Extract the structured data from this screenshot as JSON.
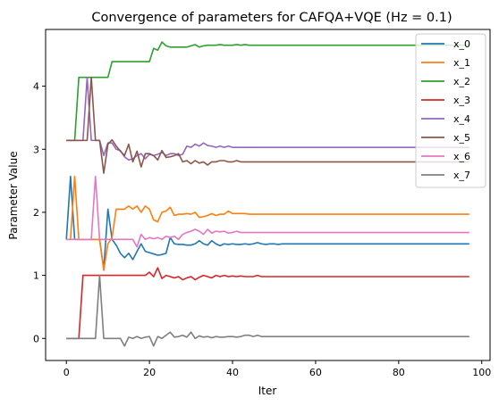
{
  "chart_data": {
    "type": "line",
    "title": "Convergence of parameters for CAFQA+VQE (Hz = 0.1)",
    "xlabel": "Iter",
    "ylabel": "Parameter Value",
    "xlim": [
      -5,
      102
    ],
    "ylim": [
      -0.35,
      4.9
    ],
    "xticks": [
      0,
      20,
      40,
      60,
      80,
      100
    ],
    "yticks": [
      0,
      1,
      2,
      3,
      4
    ],
    "legend_position": "top-right",
    "grid": false,
    "x": [
      0,
      1,
      2,
      3,
      4,
      5,
      6,
      7,
      8,
      9,
      10,
      11,
      12,
      13,
      14,
      15,
      16,
      17,
      18,
      19,
      20,
      21,
      22,
      23,
      24,
      25,
      26,
      27,
      28,
      29,
      30,
      31,
      32,
      33,
      34,
      35,
      36,
      37,
      38,
      39,
      40,
      41,
      42,
      43,
      44,
      45,
      46,
      47,
      48,
      49,
      50,
      51,
      52,
      53,
      54,
      55,
      56,
      57,
      58,
      59,
      60,
      61,
      62,
      63,
      64,
      65,
      66,
      67,
      68,
      69,
      70,
      71,
      72,
      73,
      74,
      75,
      76,
      77,
      78,
      79,
      80,
      81,
      82,
      83,
      84,
      85,
      86,
      87,
      88,
      89,
      90,
      91,
      92,
      93,
      94,
      95,
      96,
      97
    ],
    "series": [
      {
        "name": "x_0",
        "color": "#1f77b4",
        "values": [
          1.57,
          2.57,
          1.57,
          1.57,
          1.57,
          1.57,
          1.57,
          1.57,
          1.57,
          1.1,
          2.05,
          1.57,
          1.48,
          1.35,
          1.28,
          1.35,
          1.25,
          1.38,
          1.5,
          1.38,
          1.36,
          1.34,
          1.32,
          1.33,
          1.35,
          1.6,
          1.5,
          1.49,
          1.49,
          1.48,
          1.48,
          1.5,
          1.55,
          1.5,
          1.48,
          1.55,
          1.5,
          1.47,
          1.5,
          1.49,
          1.5,
          1.49,
          1.49,
          1.5,
          1.49,
          1.5,
          1.52,
          1.5,
          1.49,
          1.5,
          1.5,
          1.49,
          1.5,
          1.5,
          1.5,
          1.5,
          1.5,
          1.5,
          1.5,
          1.5,
          1.5,
          1.5,
          1.5,
          1.5,
          1.5,
          1.5,
          1.5,
          1.5,
          1.5,
          1.5,
          1.5,
          1.5,
          1.5,
          1.5,
          1.5,
          1.5,
          1.5,
          1.5,
          1.5,
          1.5,
          1.5,
          1.5,
          1.5,
          1.5,
          1.5,
          1.5,
          1.5,
          1.5,
          1.5,
          1.5,
          1.5,
          1.5,
          1.5,
          1.5,
          1.5,
          1.5,
          1.5,
          1.5
        ]
      },
      {
        "name": "x_1",
        "color": "#ff7f0e",
        "values": [
          1.57,
          1.57,
          2.57,
          1.57,
          1.57,
          1.57,
          1.57,
          1.57,
          1.57,
          1.08,
          1.5,
          1.6,
          2.05,
          2.05,
          2.05,
          2.1,
          2.05,
          2.1,
          2.0,
          2.1,
          2.05,
          1.88,
          1.85,
          2.0,
          2.02,
          2.08,
          1.95,
          1.97,
          1.97,
          1.98,
          1.97,
          2.0,
          1.92,
          1.93,
          1.95,
          1.98,
          1.95,
          1.97,
          1.97,
          2.02,
          1.98,
          1.98,
          1.98,
          1.98,
          1.97,
          1.97,
          1.97,
          1.97,
          1.97,
          1.97,
          1.97,
          1.97,
          1.97,
          1.97,
          1.97,
          1.97,
          1.97,
          1.97,
          1.97,
          1.97,
          1.97,
          1.97,
          1.97,
          1.97,
          1.97,
          1.97,
          1.97,
          1.97,
          1.97,
          1.97,
          1.97,
          1.97,
          1.97,
          1.97,
          1.97,
          1.97,
          1.97,
          1.97,
          1.97,
          1.97,
          1.97,
          1.97,
          1.97,
          1.97,
          1.97,
          1.97,
          1.97,
          1.97,
          1.97,
          1.97,
          1.97,
          1.97,
          1.97,
          1.97,
          1.97,
          1.97,
          1.97,
          1.97
        ]
      },
      {
        "name": "x_2",
        "color": "#2ca02c",
        "values": [
          3.14,
          3.14,
          3.14,
          4.14,
          4.14,
          4.14,
          4.14,
          4.14,
          4.14,
          4.14,
          4.14,
          4.39,
          4.39,
          4.39,
          4.39,
          4.39,
          4.39,
          4.39,
          4.39,
          4.39,
          4.39,
          4.6,
          4.57,
          4.7,
          4.64,
          4.62,
          4.62,
          4.62,
          4.62,
          4.62,
          4.64,
          4.66,
          4.62,
          4.64,
          4.65,
          4.65,
          4.65,
          4.66,
          4.65,
          4.65,
          4.65,
          4.66,
          4.65,
          4.66,
          4.65,
          4.65,
          4.65,
          4.65,
          4.65,
          4.65,
          4.65,
          4.65,
          4.65,
          4.65,
          4.65,
          4.65,
          4.65,
          4.65,
          4.65,
          4.65,
          4.65,
          4.65,
          4.65,
          4.65,
          4.65,
          4.65,
          4.65,
          4.65,
          4.65,
          4.65,
          4.65,
          4.65,
          4.65,
          4.65,
          4.65,
          4.65,
          4.65,
          4.65,
          4.65,
          4.65,
          4.65,
          4.65,
          4.65,
          4.65,
          4.65,
          4.65,
          4.65,
          4.65,
          4.65,
          4.65,
          4.65,
          4.65,
          4.65,
          4.65,
          4.65,
          4.65,
          4.65,
          4.65
        ]
      },
      {
        "name": "x_3",
        "color": "#d62728",
        "values": [
          0,
          0,
          0,
          0,
          1.0,
          1.0,
          1.0,
          1.0,
          1.0,
          1.0,
          1.0,
          1.0,
          1.0,
          1.0,
          1.0,
          1.0,
          1.0,
          1.0,
          1.0,
          1.0,
          1.05,
          0.98,
          1.12,
          0.95,
          1.0,
          0.98,
          0.96,
          0.98,
          0.93,
          0.96,
          0.98,
          0.93,
          0.97,
          1.0,
          0.98,
          0.96,
          1.0,
          0.98,
          1.0,
          0.98,
          0.99,
          0.98,
          0.99,
          0.98,
          0.98,
          0.98,
          1.0,
          0.98,
          0.98,
          0.98,
          0.98,
          0.98,
          0.98,
          0.98,
          0.98,
          0.98,
          0.98,
          0.98,
          0.98,
          0.98,
          0.98,
          0.98,
          0.98,
          0.98,
          0.98,
          0.98,
          0.98,
          0.98,
          0.98,
          0.98,
          0.98,
          0.98,
          0.98,
          0.98,
          0.98,
          0.98,
          0.98,
          0.98,
          0.98,
          0.98,
          0.98,
          0.98,
          0.98,
          0.98,
          0.98,
          0.98,
          0.98,
          0.98,
          0.98,
          0.98,
          0.98,
          0.98,
          0.98,
          0.98,
          0.98,
          0.98,
          0.98,
          0.98
        ]
      },
      {
        "name": "x_4",
        "color": "#9467bd",
        "values": [
          3.14,
          3.14,
          3.14,
          3.14,
          3.14,
          4.14,
          3.14,
          3.14,
          3.14,
          2.9,
          3.1,
          3.1,
          3.0,
          2.98,
          2.88,
          2.83,
          2.85,
          2.9,
          2.93,
          2.85,
          2.92,
          2.9,
          2.92,
          2.95,
          2.9,
          2.93,
          2.93,
          2.9,
          2.92,
          3.05,
          3.03,
          3.08,
          3.05,
          3.1,
          3.06,
          3.05,
          3.03,
          3.05,
          3.03,
          3.05,
          3.03,
          3.03,
          3.03,
          3.03,
          3.03,
          3.03,
          3.03,
          3.03,
          3.03,
          3.03,
          3.03,
          3.03,
          3.03,
          3.03,
          3.03,
          3.03,
          3.03,
          3.03,
          3.03,
          3.03,
          3.03,
          3.03,
          3.03,
          3.03,
          3.03,
          3.03,
          3.03,
          3.03,
          3.03,
          3.03,
          3.03,
          3.03,
          3.03,
          3.03,
          3.03,
          3.03,
          3.03,
          3.03,
          3.03,
          3.03,
          3.03,
          3.03,
          3.03,
          3.03,
          3.03,
          3.03,
          3.03,
          3.03,
          3.03,
          3.03,
          3.03,
          3.03,
          3.03,
          3.03,
          3.03,
          3.03,
          3.03,
          3.03
        ]
      },
      {
        "name": "x_5",
        "color": "#8c564b",
        "values": [
          3.14,
          3.14,
          3.14,
          3.14,
          3.14,
          3.14,
          4.14,
          3.14,
          3.14,
          2.62,
          3.08,
          3.15,
          3.05,
          2.97,
          2.9,
          3.08,
          2.8,
          2.97,
          2.72,
          2.93,
          2.93,
          2.9,
          2.83,
          2.98,
          2.87,
          2.88,
          2.9,
          2.93,
          2.8,
          2.82,
          2.77,
          2.82,
          2.78,
          2.8,
          2.75,
          2.8,
          2.8,
          2.82,
          2.82,
          2.8,
          2.8,
          2.82,
          2.8,
          2.8,
          2.8,
          2.8,
          2.8,
          2.8,
          2.8,
          2.8,
          2.8,
          2.8,
          2.8,
          2.8,
          2.8,
          2.8,
          2.8,
          2.8,
          2.8,
          2.8,
          2.8,
          2.8,
          2.8,
          2.8,
          2.8,
          2.8,
          2.8,
          2.8,
          2.8,
          2.8,
          2.8,
          2.8,
          2.8,
          2.8,
          2.8,
          2.8,
          2.8,
          2.8,
          2.8,
          2.8,
          2.8,
          2.8,
          2.8,
          2.8,
          2.8,
          2.8,
          2.8,
          2.8,
          2.8,
          2.8,
          2.8,
          2.8,
          2.8,
          2.8,
          2.8,
          2.8,
          2.8,
          2.8
        ]
      },
      {
        "name": "x_6",
        "color": "#e377c2",
        "values": [
          1.57,
          1.57,
          1.57,
          1.57,
          1.57,
          1.57,
          1.57,
          2.57,
          1.57,
          1.57,
          1.57,
          1.57,
          1.57,
          1.57,
          1.57,
          1.57,
          1.57,
          1.45,
          1.65,
          1.57,
          1.6,
          1.58,
          1.6,
          1.57,
          1.62,
          1.6,
          1.62,
          1.57,
          1.65,
          1.68,
          1.7,
          1.73,
          1.7,
          1.65,
          1.73,
          1.67,
          1.7,
          1.69,
          1.7,
          1.67,
          1.68,
          1.7,
          1.68,
          1.68,
          1.68,
          1.68,
          1.68,
          1.68,
          1.68,
          1.68,
          1.68,
          1.68,
          1.68,
          1.68,
          1.68,
          1.68,
          1.68,
          1.68,
          1.68,
          1.68,
          1.68,
          1.68,
          1.68,
          1.68,
          1.68,
          1.68,
          1.68,
          1.68,
          1.68,
          1.68,
          1.68,
          1.68,
          1.68,
          1.68,
          1.68,
          1.68,
          1.68,
          1.68,
          1.68,
          1.68,
          1.68,
          1.68,
          1.68,
          1.68,
          1.68,
          1.68,
          1.68,
          1.68,
          1.68,
          1.68,
          1.68,
          1.68,
          1.68,
          1.68,
          1.68,
          1.68,
          1.68,
          1.68
        ]
      },
      {
        "name": "x_7",
        "color": "#7f7f7f",
        "values": [
          0,
          0,
          0,
          0,
          0,
          0,
          0,
          0,
          1.0,
          0,
          0,
          0,
          0,
          0,
          -0.12,
          0.02,
          0,
          0.03,
          0,
          0.02,
          0.03,
          -0.12,
          0.03,
          0,
          0.05,
          0.1,
          0.02,
          0.03,
          0.05,
          0.02,
          0.1,
          0,
          0.04,
          0.02,
          0.03,
          0.01,
          0.03,
          0.02,
          0.02,
          0.03,
          0.03,
          0.02,
          0.03,
          0.05,
          0.05,
          0.03,
          0.05,
          0.03,
          0.03,
          0.03,
          0.03,
          0.03,
          0.03,
          0.03,
          0.03,
          0.03,
          0.03,
          0.03,
          0.03,
          0.03,
          0.03,
          0.03,
          0.03,
          0.03,
          0.03,
          0.03,
          0.03,
          0.03,
          0.03,
          0.03,
          0.03,
          0.03,
          0.03,
          0.03,
          0.03,
          0.03,
          0.03,
          0.03,
          0.03,
          0.03,
          0.03,
          0.03,
          0.03,
          0.03,
          0.03,
          0.03,
          0.03,
          0.03,
          0.03,
          0.03,
          0.03,
          0.03,
          0.03,
          0.03,
          0.03,
          0.03,
          0.03,
          0.03
        ]
      }
    ]
  }
}
